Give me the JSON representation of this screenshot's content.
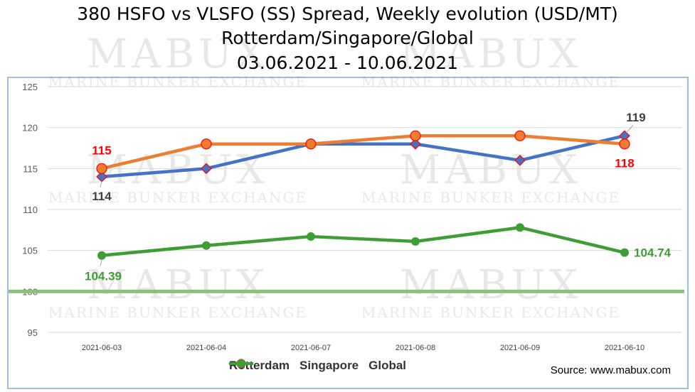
{
  "title_lines": [
    "380 HSFO vs VLSFO (SS) Spread, Weekly evolution (USD/MT)",
    "Rotterdam/Singapore/Global",
    "03.06.2021 - 10.06.2021"
  ],
  "watermark": {
    "brand": "MABUX",
    "tagline": "Marine Bunker Exchange"
  },
  "source": "Source: www.mabux.com",
  "colors": {
    "rotterdam": "#4472c4",
    "singapore": "#ed7d31",
    "global": "#3e9e35",
    "label_red": "#ff0000",
    "label_green": "#3e9e35",
    "label_dark": "#404040",
    "plot_border": "#9ec0de",
    "reference_line": "#8fbf7f"
  },
  "chart_data": {
    "type": "line",
    "categories": [
      "2021-06-03",
      "2021-06-04",
      "2021-06-07",
      "2021-06-08",
      "2021-06-09",
      "2021-06-10"
    ],
    "series": [
      {
        "name": "Rotterdam",
        "values": [
          114,
          115,
          118,
          118,
          116,
          119
        ],
        "marker": "diamond"
      },
      {
        "name": "Singapore",
        "values": [
          115,
          118,
          118,
          119,
          119,
          118
        ],
        "marker": "circle"
      },
      {
        "name": "Global",
        "values": [
          104.39,
          105.6,
          106.7,
          106.1,
          107.8,
          104.74
        ],
        "marker": "circle"
      }
    ],
    "yticks": [
      95,
      100,
      105,
      110,
      115,
      120,
      125
    ],
    "ylim": [
      95,
      125
    ],
    "reference_line": 100,
    "grid": "horizontal",
    "legend": "bottom",
    "data_labels": [
      {
        "text": "115",
        "series": "Singapore",
        "index": 0,
        "color": "red",
        "position": "above"
      },
      {
        "text": "114",
        "series": "Rotterdam",
        "index": 0,
        "color": "dark",
        "position": "below"
      },
      {
        "text": "119",
        "series": "Rotterdam",
        "index": 5,
        "color": "dark",
        "position": "above"
      },
      {
        "text": "118",
        "series": "Singapore",
        "index": 5,
        "color": "red",
        "position": "below"
      },
      {
        "text": "104.39",
        "series": "Global",
        "index": 0,
        "color": "green",
        "position": "below"
      },
      {
        "text": "104.74",
        "series": "Global",
        "index": 5,
        "color": "green",
        "position": "right"
      }
    ]
  }
}
